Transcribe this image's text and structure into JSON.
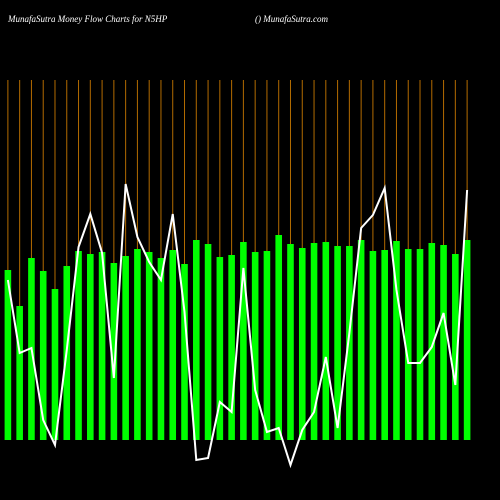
{
  "chart_data": {
    "type": "bar-line",
    "title": "MunafaSutra  Money Flow  Charts for N5HP",
    "subtitle": "() MunafaSutra.com",
    "categories": [
      null,
      null,
      null,
      null,
      null,
      null,
      null,
      null,
      null,
      null,
      null,
      null,
      null,
      null,
      null,
      null,
      null,
      null,
      null,
      null,
      null,
      null,
      null,
      null,
      null,
      null,
      null,
      null,
      null,
      null,
      null,
      null,
      null,
      null,
      null,
      null,
      null,
      null,
      null,
      null
    ],
    "series": [
      {
        "color": "#00ff00",
        "values": [
          170,
          134,
          182,
          169,
          151,
          174,
          189,
          186,
          188,
          177,
          184,
          191,
          188,
          182,
          190,
          176,
          200,
          196,
          183,
          185,
          198,
          188,
          189,
          205,
          196,
          192,
          197,
          198,
          194,
          194,
          200,
          189,
          190,
          199,
          191,
          191,
          197,
          195,
          186,
          200
        ]
      },
      {
        "color": "#ffffff",
        "values": [
          160,
          87,
          92,
          20,
          -5,
          90,
          193,
          226,
          187,
          62,
          256,
          203,
          178,
          160,
          226,
          128,
          -20,
          -18,
          38,
          28,
          172,
          50,
          8,
          12,
          -25,
          10,
          28,
          83,
          12,
          107,
          212,
          225,
          252,
          150,
          77,
          77,
          93,
          127,
          55,
          250
        ]
      }
    ],
    "ylim": [
      -40,
      360
    ],
    "grid": true,
    "grid_color": "#b36b00"
  }
}
